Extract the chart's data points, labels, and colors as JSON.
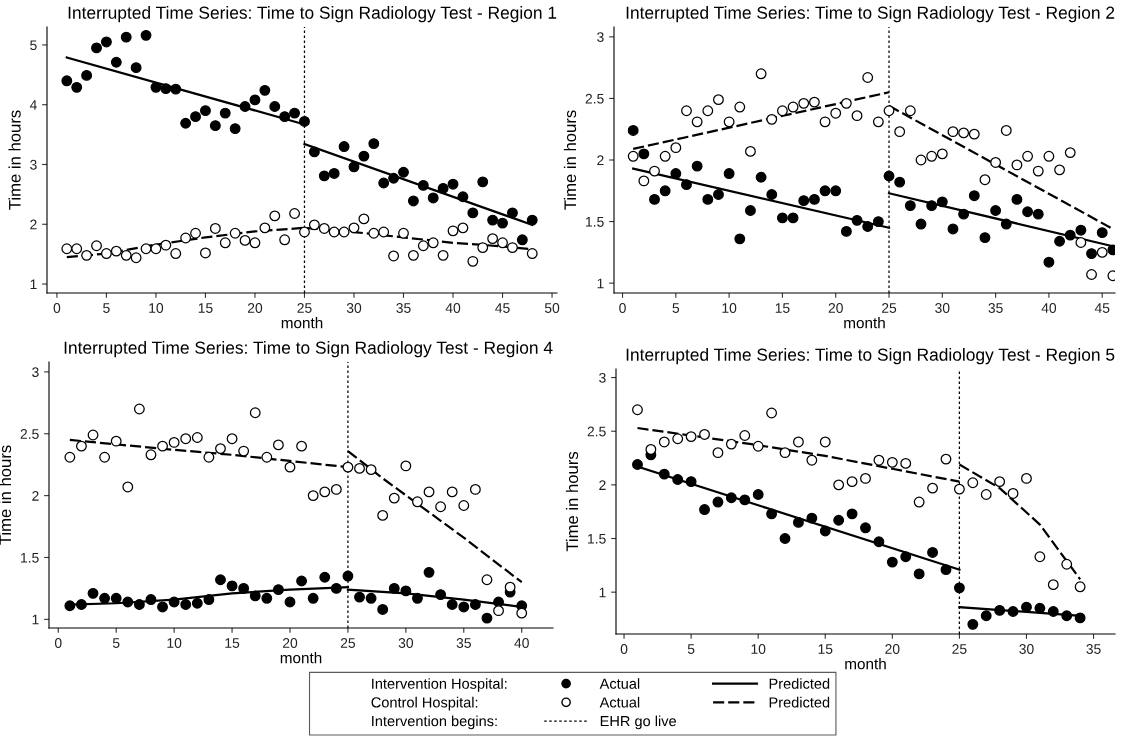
{
  "chart_data": [
    {
      "type": "scatter",
      "title": "Interrupted Time Series: Time to Sign Radiology Test - Region 1",
      "xlabel": "month",
      "ylabel": "Time in hours",
      "xlim": [
        -1,
        50.5
      ],
      "xticks": [
        0,
        5,
        10,
        15,
        20,
        25,
        30,
        35,
        40,
        45,
        50
      ],
      "ylim": [
        0.85,
        5.3
      ],
      "yticks": [
        1,
        2,
        3,
        4,
        5
      ],
      "grid": false,
      "marker": "circle",
      "ref_lines": [
        {
          "axis": "x",
          "value": 25,
          "color": "#000000",
          "line_style": "dotted"
        }
      ],
      "series": [
        {
          "color": "#000000",
          "x": [
            1,
            2,
            3,
            4,
            5,
            6,
            7,
            8,
            9,
            10,
            11,
            12,
            13,
            14,
            15,
            16,
            17,
            18,
            19,
            20,
            21,
            22,
            23,
            24,
            25,
            26,
            27,
            28,
            29,
            30,
            31,
            32,
            33,
            34,
            35,
            36,
            37,
            38,
            39,
            40,
            41,
            42,
            43,
            44,
            45,
            46,
            47,
            48
          ],
          "values": [
            4.4,
            4.29,
            4.49,
            4.95,
            5.05,
            4.71,
            5.13,
            4.62,
            5.16,
            4.29,
            4.27,
            4.26,
            3.69,
            3.8,
            3.9,
            3.65,
            3.86,
            3.6,
            3.97,
            4.08,
            4.24,
            3.97,
            3.8,
            3.86,
            3.72,
            3.21,
            2.81,
            2.85,
            3.3,
            2.96,
            3.14,
            3.35,
            2.69,
            2.77,
            2.87,
            2.39,
            2.65,
            2.44,
            2.6,
            2.67,
            2.46,
            2.19,
            2.71,
            2.07,
            2.02,
            2.19,
            1.74,
            2.07
          ]
        },
        {
          "color": "#ffffff",
          "x": [
            1,
            2,
            3,
            4,
            5,
            6,
            7,
            8,
            9,
            10,
            11,
            12,
            13,
            14,
            15,
            16,
            17,
            18,
            19,
            20,
            21,
            22,
            23,
            24,
            25,
            26,
            27,
            28,
            29,
            30,
            31,
            32,
            33,
            34,
            35,
            36,
            37,
            38,
            39,
            40,
            41,
            42,
            43,
            44,
            45,
            46,
            47,
            48
          ],
          "values": [
            1.59,
            1.59,
            1.48,
            1.64,
            1.51,
            1.55,
            1.48,
            1.44,
            1.59,
            1.59,
            1.65,
            1.51,
            1.77,
            1.85,
            1.52,
            1.93,
            1.69,
            1.85,
            1.73,
            1.69,
            1.94,
            2.14,
            1.74,
            2.18,
            1.87,
            1.99,
            1.93,
            1.87,
            1.87,
            1.94,
            2.09,
            1.85,
            1.87,
            1.47,
            1.85,
            1.48,
            1.64,
            1.69,
            1.48,
            1.89,
            1.94,
            1.38,
            1.61,
            1.76,
            1.69,
            1.61,
            null,
            1.51
          ]
        },
        {
          "type": "line",
          "color": "#000000",
          "line_style": "solid",
          "marker": "none",
          "x": [
            1,
            25
          ],
          "values": [
            4.79,
            3.67
          ]
        },
        {
          "type": "line",
          "color": "#000000",
          "line_style": "solid",
          "marker": "none",
          "x": [
            25,
            48
          ],
          "values": [
            3.34,
            1.99
          ]
        },
        {
          "type": "line",
          "color": "#000000",
          "line_style": "dashed",
          "marker": "none",
          "x": [
            1,
            5,
            10,
            15,
            20,
            25,
            30,
            35,
            40,
            45,
            48
          ],
          "values": [
            1.45,
            1.51,
            1.66,
            1.78,
            1.88,
            1.94,
            1.87,
            1.78,
            1.69,
            1.63,
            1.58
          ]
        }
      ]
    },
    {
      "type": "scatter",
      "title": "Interrupted Time Series: Time to Sign Radiology Test - Region 2",
      "xlabel": "month",
      "ylabel": "Time in hours",
      "xlim": [
        -0.8,
        46.2
      ],
      "xticks": [
        0,
        5,
        10,
        15,
        20,
        25,
        30,
        35,
        40,
        45
      ],
      "ylim": [
        0.92,
        3.08
      ],
      "yticks": [
        1,
        1.5,
        2,
        2.5,
        3
      ],
      "grid": false,
      "marker": "circle",
      "ref_lines": [
        {
          "axis": "x",
          "value": 25,
          "color": "#000000",
          "line_style": "dotted"
        }
      ],
      "series": [
        {
          "color": "#000000",
          "x": [
            1,
            2,
            3,
            4,
            5,
            6,
            7,
            8,
            9,
            10,
            11,
            12,
            13,
            14,
            15,
            16,
            17,
            18,
            19,
            20,
            21,
            22,
            23,
            24,
            25,
            26,
            27,
            28,
            29,
            30,
            31,
            32,
            33,
            34,
            35,
            36,
            37,
            38,
            39,
            40,
            41,
            42,
            43,
            44,
            45,
            46
          ],
          "values": [
            2.24,
            2.05,
            1.68,
            1.75,
            1.89,
            1.8,
            1.95,
            1.68,
            1.72,
            1.89,
            1.36,
            1.59,
            1.86,
            1.72,
            1.53,
            1.53,
            1.67,
            1.68,
            1.75,
            1.75,
            1.42,
            1.51,
            1.46,
            1.5,
            1.87,
            1.82,
            1.63,
            1.48,
            1.63,
            1.66,
            1.44,
            1.56,
            1.71,
            1.37,
            1.59,
            1.48,
            1.68,
            1.58,
            1.56,
            1.17,
            1.34,
            1.39,
            1.43,
            1.24,
            1.41,
            1.27
          ]
        },
        {
          "color": "#ffffff",
          "x": [
            1,
            2,
            3,
            4,
            5,
            6,
            7,
            8,
            9,
            10,
            11,
            12,
            13,
            14,
            15,
            16,
            17,
            18,
            19,
            20,
            21,
            22,
            23,
            24,
            25,
            26,
            27,
            28,
            29,
            30,
            31,
            32,
            33,
            34,
            35,
            36,
            37,
            38,
            39,
            40,
            41,
            42,
            43,
            44,
            45,
            46
          ],
          "values": [
            2.03,
            1.83,
            1.91,
            2.03,
            2.1,
            2.4,
            2.31,
            2.4,
            2.49,
            2.31,
            2.43,
            2.07,
            2.7,
            2.33,
            2.4,
            2.43,
            2.46,
            2.47,
            2.31,
            2.38,
            2.46,
            2.36,
            2.67,
            2.31,
            2.4,
            2.23,
            2.4,
            2.0,
            2.03,
            2.05,
            2.23,
            2.22,
            2.21,
            1.84,
            1.98,
            2.24,
            1.96,
            2.03,
            1.91,
            2.03,
            1.92,
            2.06,
            1.33,
            1.07,
            1.25,
            1.06
          ]
        },
        {
          "type": "line",
          "color": "#000000",
          "line_style": "solid",
          "marker": "none",
          "x": [
            1,
            25
          ],
          "values": [
            1.93,
            1.45
          ]
        },
        {
          "type": "line",
          "color": "#000000",
          "line_style": "solid",
          "marker": "none",
          "x": [
            25,
            46
          ],
          "values": [
            1.73,
            1.3
          ]
        },
        {
          "type": "line",
          "color": "#000000",
          "line_style": "dashed",
          "marker": "none",
          "x": [
            1,
            25
          ],
          "values": [
            2.09,
            2.55
          ]
        },
        {
          "type": "line",
          "color": "#000000",
          "line_style": "dashed",
          "marker": "none",
          "x": [
            25,
            46
          ],
          "values": [
            2.44,
            1.44
          ]
        }
      ]
    },
    {
      "type": "scatter",
      "title": "Interrupted Time Series: Time to Sign Radiology Test - Region 4",
      "xlabel": "month",
      "ylabel": "Time in hours",
      "xlim": [
        -0.8,
        42.7
      ],
      "xticks": [
        0,
        5,
        10,
        15,
        20,
        25,
        30,
        35,
        40
      ],
      "ylim": [
        0.93,
        3.08
      ],
      "yticks": [
        1,
        1.5,
        2,
        2.5,
        3
      ],
      "grid": false,
      "marker": "circle",
      "ref_lines": [
        {
          "axis": "x",
          "value": 25,
          "color": "#000000",
          "line_style": "dotted"
        }
      ],
      "series": [
        {
          "color": "#000000",
          "x": [
            1,
            2,
            3,
            4,
            5,
            6,
            7,
            8,
            9,
            10,
            11,
            12,
            13,
            14,
            15,
            16,
            17,
            18,
            19,
            20,
            21,
            22,
            23,
            24,
            25,
            26,
            27,
            28,
            29,
            30,
            31,
            32,
            33,
            34,
            35,
            36,
            37,
            38,
            39,
            40
          ],
          "values": [
            1.11,
            1.12,
            1.21,
            1.17,
            1.17,
            1.14,
            1.12,
            1.16,
            1.1,
            1.14,
            1.12,
            1.13,
            1.16,
            1.32,
            1.27,
            1.25,
            1.19,
            1.17,
            1.24,
            1.14,
            1.31,
            1.17,
            1.34,
            1.25,
            1.35,
            1.18,
            1.17,
            1.08,
            1.25,
            1.23,
            1.17,
            1.38,
            1.2,
            1.12,
            1.1,
            1.12,
            1.01,
            1.14,
            1.22,
            1.11
          ]
        },
        {
          "color": "#ffffff",
          "x": [
            1,
            2,
            3,
            4,
            5,
            6,
            7,
            8,
            9,
            10,
            11,
            12,
            13,
            14,
            15,
            16,
            17,
            18,
            19,
            20,
            21,
            22,
            23,
            24,
            25,
            26,
            27,
            28,
            29,
            30,
            31,
            32,
            33,
            34,
            35,
            36,
            37,
            38,
            39,
            40
          ],
          "values": [
            2.31,
            2.4,
            2.49,
            2.31,
            2.44,
            2.07,
            2.7,
            2.33,
            2.4,
            2.43,
            2.46,
            2.47,
            2.31,
            2.38,
            2.46,
            2.36,
            2.67,
            2.31,
            2.41,
            2.23,
            2.4,
            2.0,
            2.03,
            2.05,
            2.23,
            2.22,
            2.21,
            1.84,
            1.98,
            2.24,
            1.95,
            2.03,
            1.91,
            2.03,
            1.92,
            2.05,
            1.32,
            1.07,
            1.26,
            1.05
          ]
        },
        {
          "type": "line",
          "color": "#000000",
          "line_style": "solid",
          "marker": "none",
          "x": [
            1,
            5,
            10,
            15,
            20,
            25
          ],
          "values": [
            1.12,
            1.13,
            1.16,
            1.21,
            1.24,
            1.26
          ]
        },
        {
          "type": "line",
          "color": "#000000",
          "line_style": "solid",
          "marker": "none",
          "x": [
            25,
            30,
            35,
            40
          ],
          "values": [
            1.24,
            1.21,
            1.16,
            1.1
          ]
        },
        {
          "type": "line",
          "color": "#000000",
          "line_style": "dashed",
          "marker": "none",
          "x": [
            1,
            10,
            15,
            20,
            25
          ],
          "values": [
            2.45,
            2.37,
            2.33,
            2.28,
            2.23
          ]
        },
        {
          "type": "line",
          "color": "#000000",
          "line_style": "dashed",
          "marker": "none",
          "x": [
            25,
            28,
            35,
            40
          ],
          "values": [
            2.36,
            2.14,
            1.66,
            1.3
          ]
        }
      ]
    },
    {
      "type": "scatter",
      "title": "Interrupted Time Series: Time to Sign Radiology Test - Region 5",
      "xlabel": "month",
      "ylabel": "Time in hours",
      "xlim": [
        -0.6,
        36.6
      ],
      "xticks": [
        0,
        5,
        10,
        15,
        20,
        25,
        30,
        35
      ],
      "ylim": [
        0.61,
        3.08
      ],
      "yticks": [
        1,
        1.5,
        2,
        2.5,
        3
      ],
      "grid": false,
      "marker": "circle",
      "legend": "bottom",
      "annotations": [
        "Intervention Hospital:",
        "Control Hospital:",
        "Intervention begins:"
      ],
      "ref_lines": [
        {
          "axis": "x",
          "value": 25,
          "label": "EHR go live",
          "color": "#000000",
          "line_style": "dotted"
        }
      ],
      "series": [
        {
          "name": "Actual",
          "color": "#000000",
          "x": [
            1,
            2,
            3,
            4,
            5,
            6,
            7,
            8,
            9,
            10,
            11,
            12,
            13,
            14,
            15,
            16,
            17,
            18,
            19,
            20,
            21,
            22,
            23,
            24,
            25,
            26,
            27,
            28,
            29,
            30,
            31,
            32,
            33,
            34
          ],
          "values": [
            2.19,
            2.28,
            2.1,
            2.05,
            2.03,
            1.77,
            1.84,
            1.88,
            1.86,
            1.91,
            1.73,
            1.5,
            1.65,
            1.69,
            1.57,
            1.67,
            1.73,
            1.6,
            1.47,
            1.28,
            1.33,
            1.17,
            1.37,
            1.21,
            1.04,
            0.7,
            0.78,
            0.83,
            0.82,
            0.86,
            0.85,
            0.82,
            0.78,
            0.76
          ]
        },
        {
          "name": "Actual",
          "color": "#ffffff",
          "x": [
            1,
            2,
            3,
            4,
            5,
            6,
            7,
            8,
            9,
            10,
            11,
            12,
            13,
            14,
            15,
            16,
            17,
            18,
            19,
            20,
            21,
            22,
            23,
            24,
            25,
            26,
            27,
            28,
            29,
            30,
            31,
            32,
            33,
            34
          ],
          "values": [
            2.7,
            2.33,
            2.4,
            2.43,
            2.45,
            2.47,
            2.3,
            2.38,
            2.46,
            2.36,
            2.67,
            2.3,
            2.4,
            2.23,
            2.4,
            2.0,
            2.03,
            2.06,
            2.23,
            2.21,
            2.2,
            1.84,
            1.97,
            2.24,
            1.96,
            2.02,
            1.91,
            2.03,
            1.92,
            2.06,
            1.33,
            1.07,
            1.26,
            1.05
          ]
        },
        {
          "type": "line",
          "name": "Predicted",
          "color": "#000000",
          "line_style": "solid",
          "marker": "none",
          "x": [
            1,
            25
          ],
          "values": [
            2.17,
            1.21
          ]
        },
        {
          "type": "line",
          "color": "#000000",
          "line_style": "solid",
          "marker": "none",
          "x": [
            25,
            34
          ],
          "values": [
            0.86,
            0.78
          ]
        },
        {
          "type": "line",
          "name": "Predicted",
          "color": "#000000",
          "line_style": "dashed",
          "marker": "none",
          "x": [
            1,
            5,
            10,
            15,
            20,
            25
          ],
          "values": [
            2.53,
            2.46,
            2.37,
            2.27,
            2.15,
            2.03
          ]
        },
        {
          "type": "line",
          "color": "#000000",
          "line_style": "dashed",
          "marker": "none",
          "x": [
            25,
            28,
            31,
            34
          ],
          "values": [
            2.19,
            1.97,
            1.63,
            1.12
          ]
        }
      ]
    }
  ]
}
